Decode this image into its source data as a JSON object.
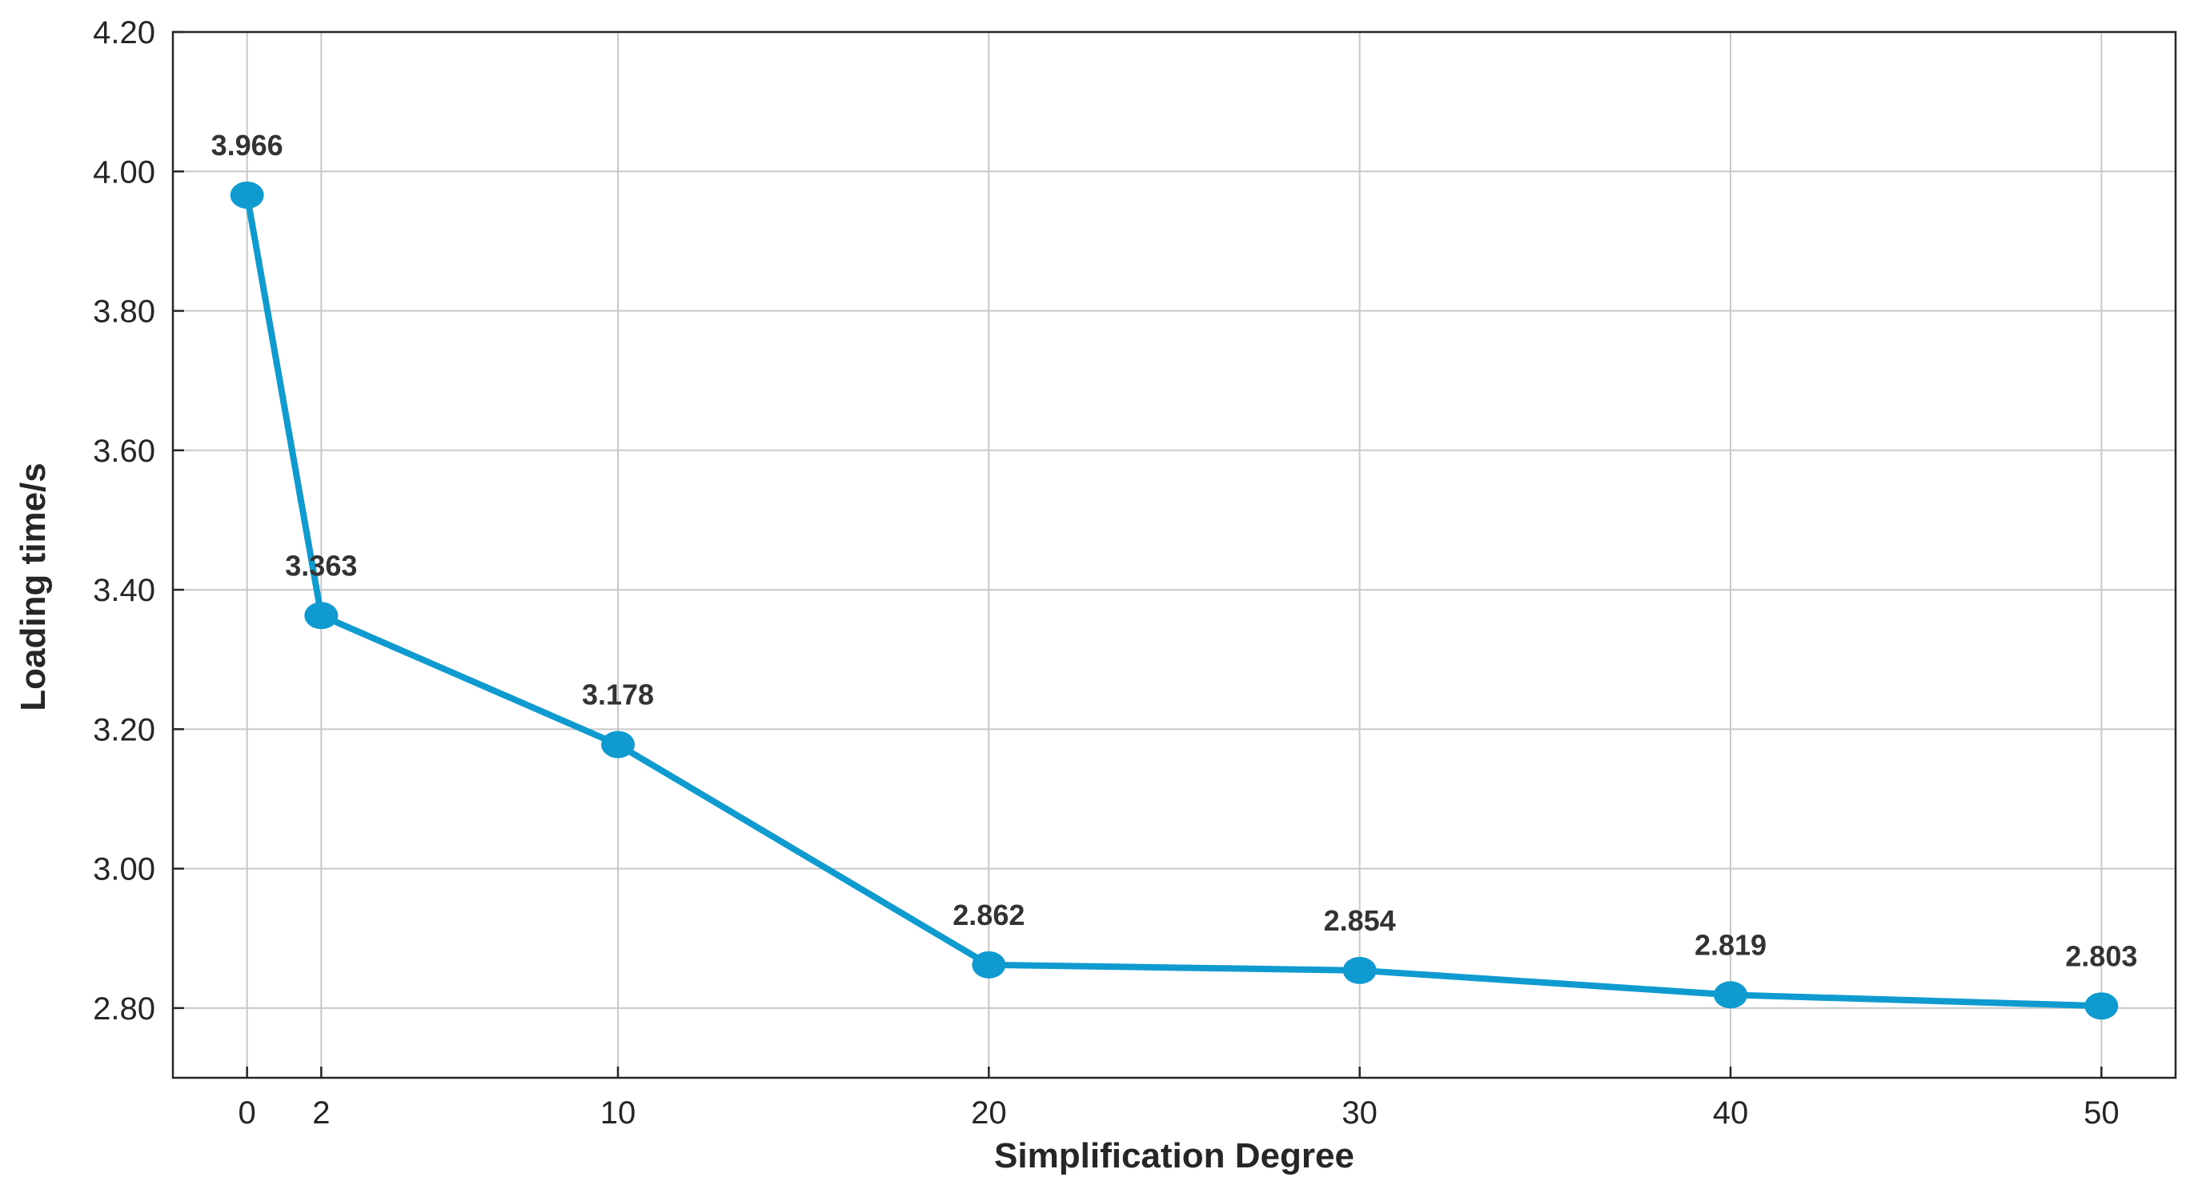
{
  "chart_data": {
    "type": "line",
    "title": "",
    "xlabel": "Simplification Degree",
    "ylabel": "Loading time/s",
    "x": [
      0,
      2,
      10,
      20,
      30,
      40,
      50
    ],
    "x_ticks": [
      "0",
      "2",
      "10",
      "20",
      "30",
      "40",
      "50"
    ],
    "y_ticks": [
      "2.80",
      "3.00",
      "3.20",
      "3.40",
      "3.60",
      "3.80",
      "4.00",
      "4.20"
    ],
    "xlim": [
      -2,
      52
    ],
    "ylim": [
      2.7,
      4.2
    ],
    "grid": true,
    "legend": false,
    "series": [
      {
        "values": [
          3.966,
          3.363,
          3.178,
          2.862,
          2.854,
          2.819,
          2.803
        ],
        "labels": [
          "3.966",
          "3.363",
          "3.178",
          "2.862",
          "2.854",
          "2.819",
          "2.803"
        ],
        "color": "#0f9bd0"
      }
    ]
  }
}
